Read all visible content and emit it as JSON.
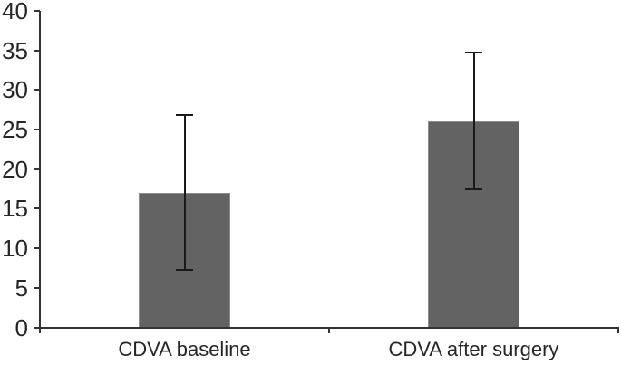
{
  "chart_data": {
    "type": "bar",
    "title": "",
    "xlabel": "",
    "ylabel": "",
    "categories": [
      "CDVA baseline",
      "CDVA after surgery"
    ],
    "values": [
      17,
      26
    ],
    "error_bars": [
      {
        "low": 7.3,
        "high": 26.8
      },
      {
        "low": 17.5,
        "high": 34.7
      }
    ],
    "ylim": [
      0,
      40
    ],
    "yticks": [
      0,
      5,
      10,
      15,
      20,
      25,
      30,
      35,
      40
    ],
    "grid": false,
    "legend_position": "none",
    "colors": {
      "bar_fill": "#636363",
      "bar_border": "#8c8c8c",
      "axis": "#333333",
      "error_bar": "#1a1a1a",
      "text": "#262626",
      "background": "#ffffff"
    }
  }
}
